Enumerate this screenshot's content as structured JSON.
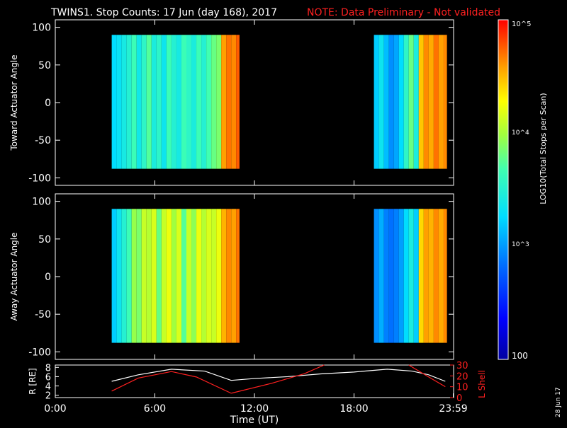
{
  "title": {
    "main": "TWINS1. Stop Counts: 17 Jun (day 168), 2017",
    "note": "NOTE: Data Preliminary - Not validated",
    "note_color": "#ff2020"
  },
  "footer_date": "28 Jun 17",
  "colorbar": {
    "label": "LOG10(Total Stops per Scan)",
    "ticks": [
      "10^5",
      "10^4",
      "10^3",
      "100"
    ],
    "min": 100,
    "max": 100000,
    "scale": "log"
  },
  "chart_data": [
    {
      "type": "heatmap",
      "ylabel": "Toward Actuator Angle",
      "ylim": [
        -110,
        110
      ],
      "yticks": [
        "100",
        "50",
        "0",
        "-50",
        "-100"
      ],
      "xlim": [
        0,
        24
      ],
      "y_extent": [
        -88,
        90
      ],
      "segments": [
        {
          "start": 3.4,
          "end": 11.1
        },
        {
          "start": 19.2,
          "end": 23.6
        }
      ],
      "columns": [
        {
          "t": 3.4,
          "level": 0.42
        },
        {
          "t": 3.7,
          "level": 0.44
        },
        {
          "t": 4.0,
          "level": 0.47
        },
        {
          "t": 4.3,
          "level": 0.5
        },
        {
          "t": 4.6,
          "level": 0.55
        },
        {
          "t": 4.9,
          "level": 0.46
        },
        {
          "t": 5.2,
          "level": 0.52
        },
        {
          "t": 5.5,
          "level": 0.58
        },
        {
          "t": 5.8,
          "level": 0.48
        },
        {
          "t": 6.1,
          "level": 0.52
        },
        {
          "t": 6.4,
          "level": 0.45
        },
        {
          "t": 6.7,
          "level": 0.55
        },
        {
          "t": 7.0,
          "level": 0.5
        },
        {
          "t": 7.3,
          "level": 0.47
        },
        {
          "t": 7.6,
          "level": 0.55
        },
        {
          "t": 7.9,
          "level": 0.52
        },
        {
          "t": 8.2,
          "level": 0.48
        },
        {
          "t": 8.5,
          "level": 0.55
        },
        {
          "t": 8.8,
          "level": 0.5
        },
        {
          "t": 9.1,
          "level": 0.56
        },
        {
          "t": 9.4,
          "level": 0.6
        },
        {
          "t": 9.7,
          "level": 0.62
        },
        {
          "t": 10.0,
          "level": 0.86
        },
        {
          "t": 10.3,
          "level": 0.9
        },
        {
          "t": 10.6,
          "level": 0.88
        },
        {
          "t": 10.9,
          "level": 0.92
        },
        {
          "t": 19.2,
          "level": 0.4
        },
        {
          "t": 19.5,
          "level": 0.45
        },
        {
          "t": 19.8,
          "level": 0.38
        },
        {
          "t": 20.1,
          "level": 0.32
        },
        {
          "t": 20.4,
          "level": 0.35
        },
        {
          "t": 20.7,
          "level": 0.42
        },
        {
          "t": 21.0,
          "level": 0.52
        },
        {
          "t": 21.3,
          "level": 0.6
        },
        {
          "t": 21.6,
          "level": 0.48
        },
        {
          "t": 21.9,
          "level": 0.82
        },
        {
          "t": 22.2,
          "level": 0.88
        },
        {
          "t": 22.5,
          "level": 0.85
        },
        {
          "t": 22.8,
          "level": 0.9
        },
        {
          "t": 23.1,
          "level": 0.86
        },
        {
          "t": 23.4,
          "level": 0.88
        }
      ]
    },
    {
      "type": "heatmap",
      "ylabel": "Away Actuator Angle",
      "ylim": [
        -110,
        110
      ],
      "yticks": [
        "100",
        "50",
        "0",
        "-50",
        "-100"
      ],
      "xlim": [
        0,
        24
      ],
      "y_extent": [
        -88,
        90
      ],
      "segments": [
        {
          "start": 3.4,
          "end": 11.1
        },
        {
          "start": 19.2,
          "end": 23.6
        }
      ],
      "columns": [
        {
          "t": 3.4,
          "level": 0.4
        },
        {
          "t": 3.7,
          "level": 0.45
        },
        {
          "t": 4.0,
          "level": 0.5
        },
        {
          "t": 4.3,
          "level": 0.55
        },
        {
          "t": 4.6,
          "level": 0.65
        },
        {
          "t": 4.9,
          "level": 0.62
        },
        {
          "t": 5.2,
          "level": 0.7
        },
        {
          "t": 5.5,
          "level": 0.68
        },
        {
          "t": 5.8,
          "level": 0.72
        },
        {
          "t": 6.1,
          "level": 0.6
        },
        {
          "t": 6.4,
          "level": 0.7
        },
        {
          "t": 6.7,
          "level": 0.74
        },
        {
          "t": 7.0,
          "level": 0.66
        },
        {
          "t": 7.3,
          "level": 0.72
        },
        {
          "t": 7.6,
          "level": 0.58
        },
        {
          "t": 7.9,
          "level": 0.7
        },
        {
          "t": 8.2,
          "level": 0.64
        },
        {
          "t": 8.5,
          "level": 0.74
        },
        {
          "t": 8.8,
          "level": 0.68
        },
        {
          "t": 9.1,
          "level": 0.72
        },
        {
          "t": 9.4,
          "level": 0.7
        },
        {
          "t": 9.7,
          "level": 0.74
        },
        {
          "t": 10.0,
          "level": 0.84
        },
        {
          "t": 10.3,
          "level": 0.88
        },
        {
          "t": 10.6,
          "level": 0.86
        },
        {
          "t": 10.9,
          "level": 0.9
        },
        {
          "t": 19.2,
          "level": 0.32
        },
        {
          "t": 19.5,
          "level": 0.36
        },
        {
          "t": 19.8,
          "level": 0.3
        },
        {
          "t": 20.1,
          "level": 0.28
        },
        {
          "t": 20.4,
          "level": 0.3
        },
        {
          "t": 20.7,
          "level": 0.34
        },
        {
          "t": 21.0,
          "level": 0.42
        },
        {
          "t": 21.3,
          "level": 0.48
        },
        {
          "t": 21.6,
          "level": 0.4
        },
        {
          "t": 21.9,
          "level": 0.8
        },
        {
          "t": 22.2,
          "level": 0.86
        },
        {
          "t": 22.5,
          "level": 0.84
        },
        {
          "t": 22.8,
          "level": 0.88
        },
        {
          "t": 23.1,
          "level": 0.85
        },
        {
          "t": 23.4,
          "level": 0.88
        }
      ]
    },
    {
      "type": "line",
      "xlabel": "Time (UT)",
      "ylabel_left": "R [RE]",
      "ylabel_right": "L Shell",
      "ylim_left": [
        1.5,
        8.5
      ],
      "ylim_right": [
        0,
        30
      ],
      "yticks_left": [
        "8",
        "6",
        "4",
        "2"
      ],
      "yticks_right": [
        "30",
        "20",
        "10",
        "0"
      ],
      "xlim": [
        0,
        24
      ],
      "xticks": [
        "0:00",
        "6:00",
        "12:00",
        "18:00",
        "23:59"
      ],
      "xtick_values": [
        0,
        6,
        12,
        18,
        23.98
      ],
      "series": [
        {
          "axis": "left",
          "color": "#ffffff",
          "x": [
            3.4,
            5.0,
            7.0,
            9.0,
            10.6,
            12.0,
            14.0,
            16.0,
            18.0,
            20.0,
            21.5,
            22.5,
            23.5
          ],
          "y": [
            5.0,
            6.4,
            7.6,
            7.2,
            5.2,
            5.6,
            6.0,
            6.6,
            7.0,
            7.6,
            7.2,
            6.4,
            5.0
          ]
        },
        {
          "axis": "right",
          "color": "#ff2020",
          "segments": [
            {
              "x": [
                3.4,
                5.0,
                7.0,
                8.5,
                10.6
              ],
              "y": [
                6,
                18,
                24,
                19,
                4
              ]
            },
            {
              "x": [
                10.6,
                13.0,
                15.0,
                16.2
              ],
              "y": [
                4,
                13,
                22,
                30
              ]
            },
            {
              "x": [
                21.3,
                22.5,
                23.5
              ],
              "y": [
                30,
                19,
                10
              ]
            }
          ]
        }
      ]
    }
  ]
}
